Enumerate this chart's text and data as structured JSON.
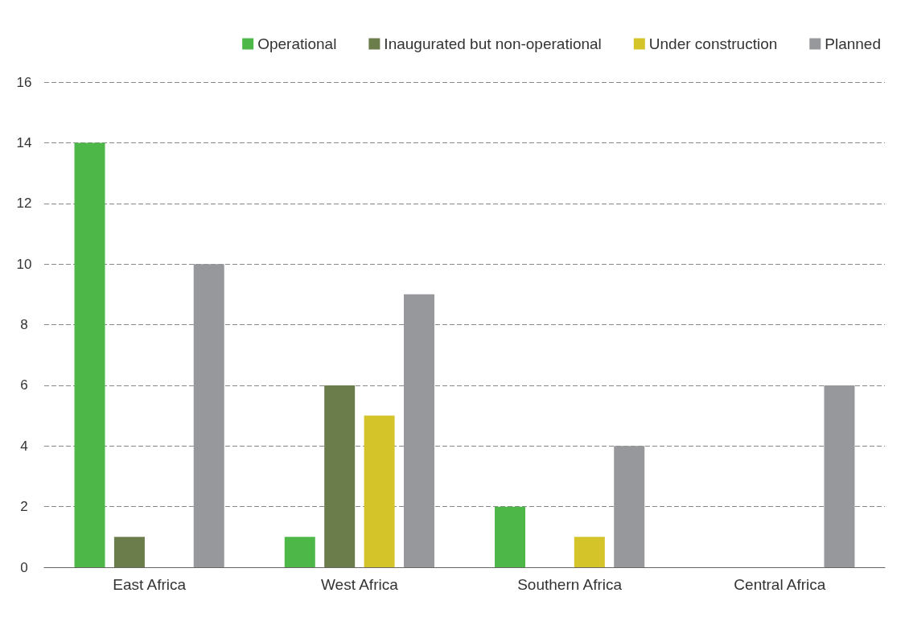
{
  "chart_data": {
    "type": "bar",
    "categories": [
      "East Africa",
      "West Africa",
      "Southern Africa",
      "Central Africa"
    ],
    "series": [
      {
        "name": "Operational",
        "color": "#4db848",
        "values": [
          14,
          1,
          2,
          0
        ]
      },
      {
        "name": "Inaugurated but non-operational",
        "color": "#6b7d4a",
        "values": [
          1,
          6,
          0,
          0
        ]
      },
      {
        "name": "Under construction",
        "color": "#d4c42a",
        "values": [
          0,
          5,
          1,
          0
        ]
      },
      {
        "name": "Planned",
        "color": "#97989b",
        "values": [
          10,
          9,
          4,
          6
        ]
      }
    ],
    "ylim": [
      0,
      16
    ],
    "yticks": [
      0,
      2,
      4,
      6,
      8,
      10,
      12,
      14,
      16
    ],
    "grid": "y",
    "legend": "top right"
  }
}
